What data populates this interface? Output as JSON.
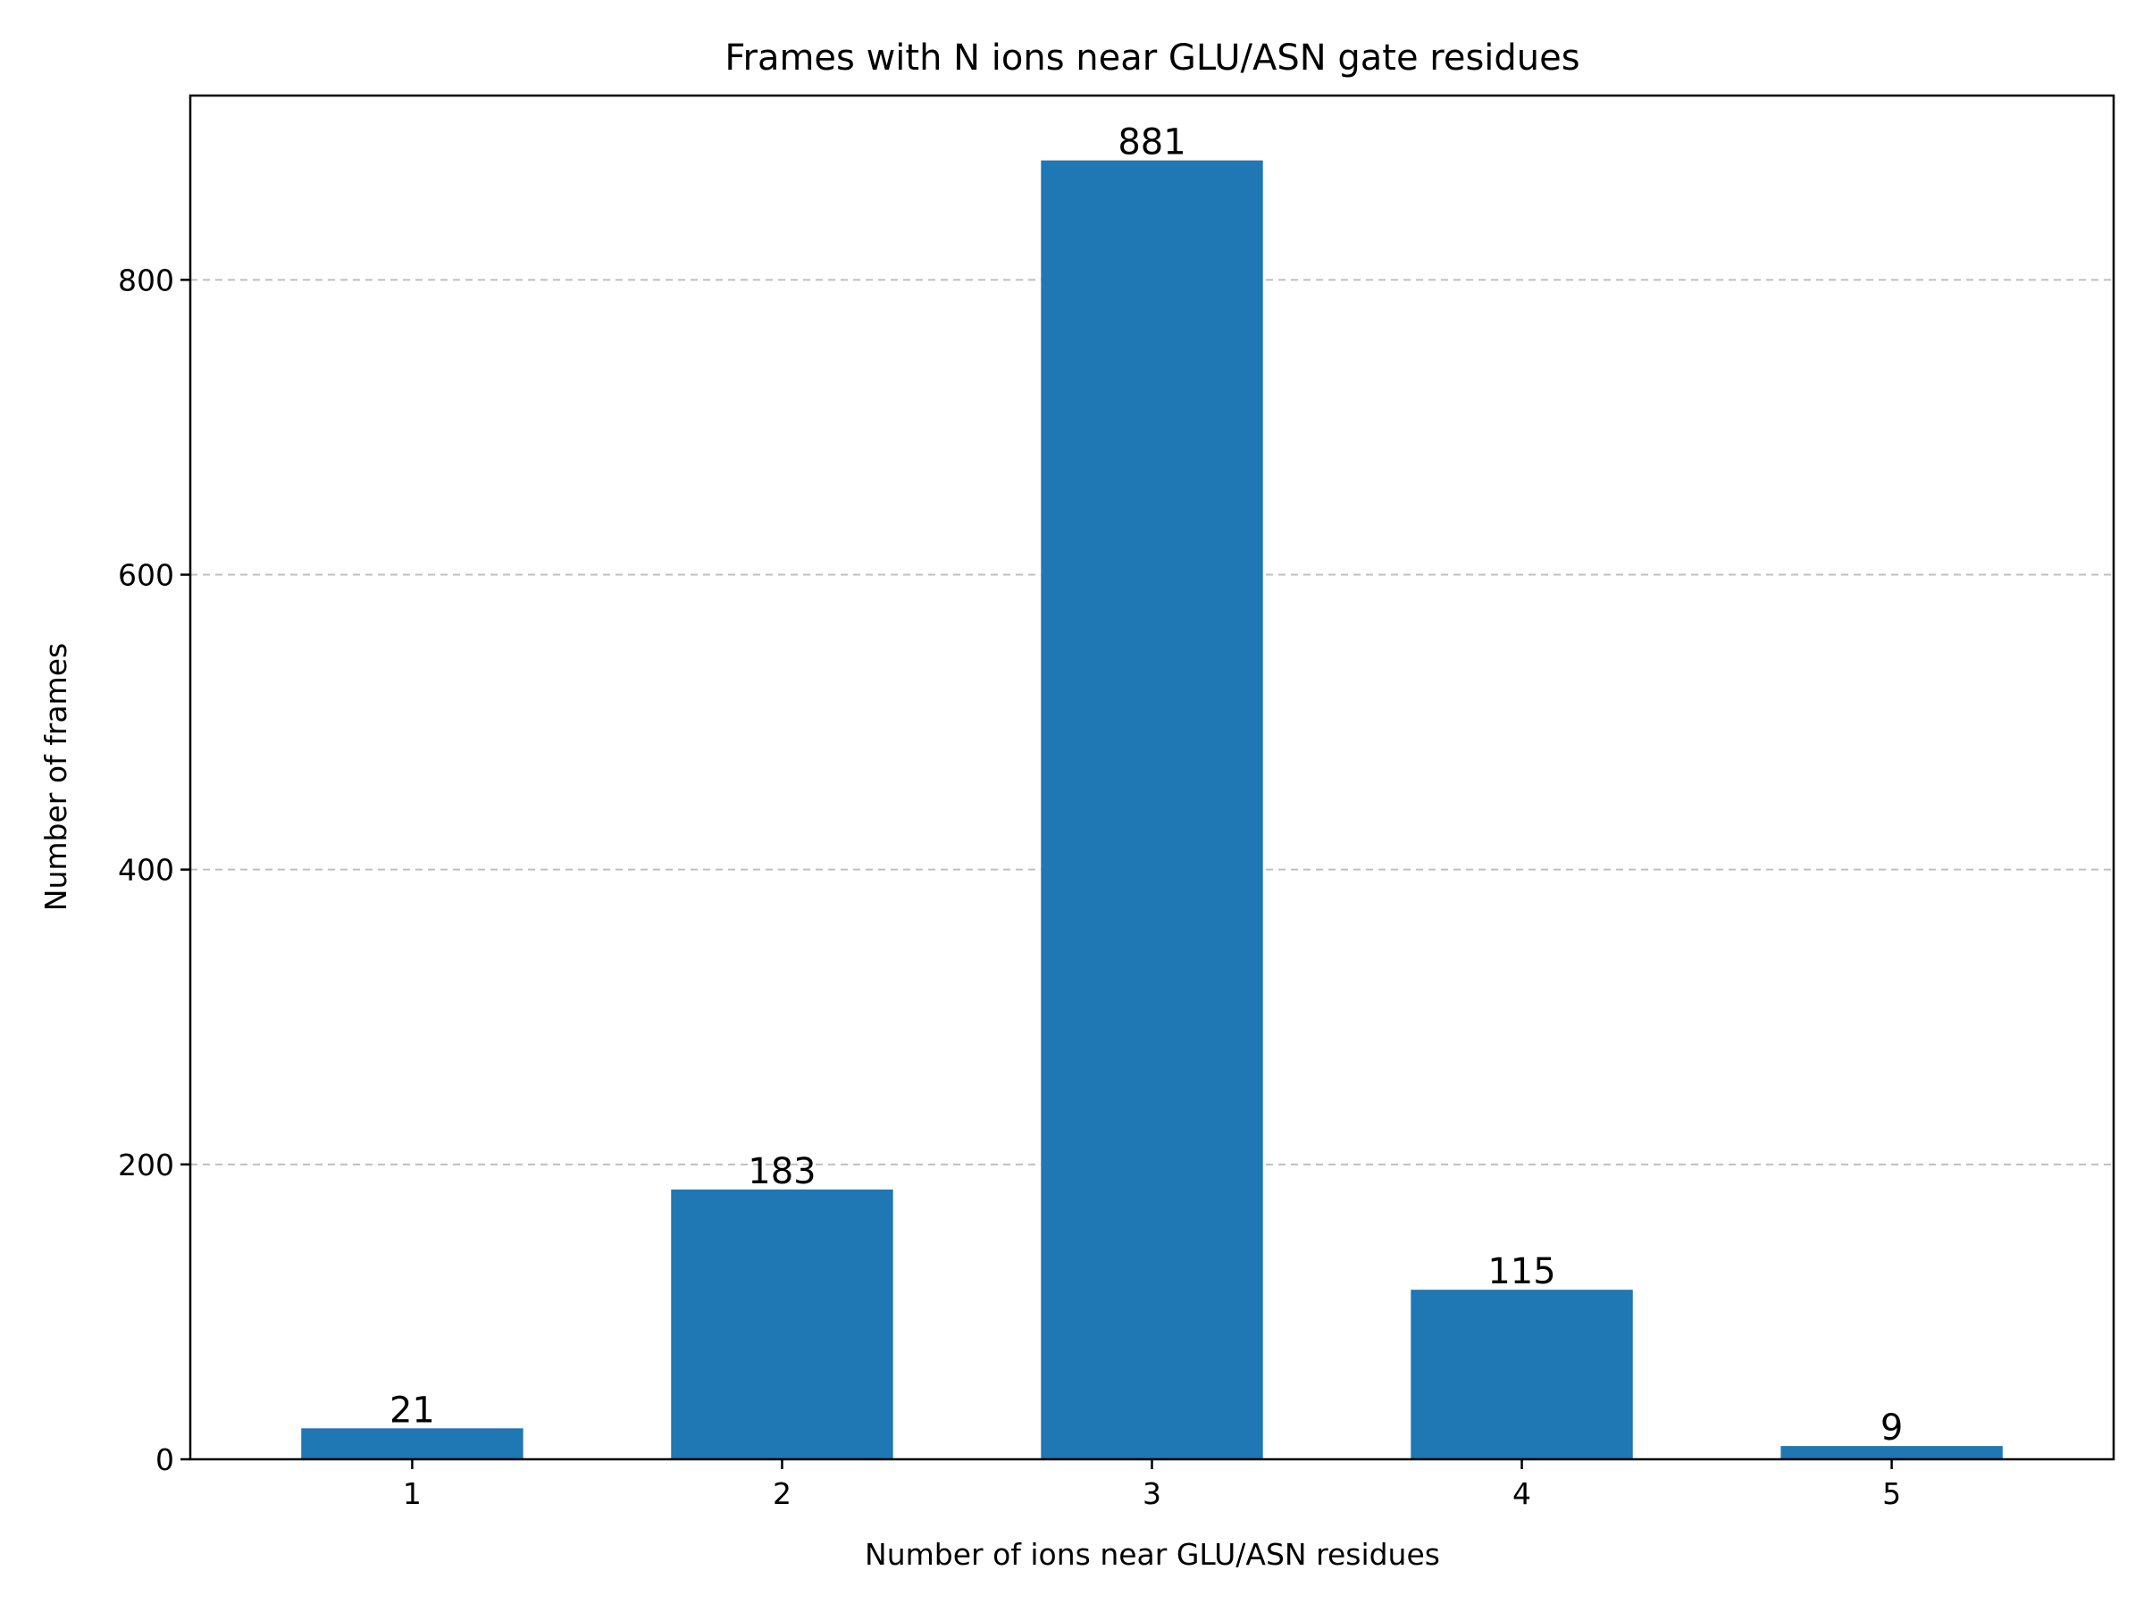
{
  "chart_data": {
    "type": "bar",
    "title": "Frames with N ions near GLU/ASN gate residues",
    "xlabel": "Number of ions near GLU/ASN residues",
    "ylabel": "Number of frames",
    "categories": [
      "1",
      "2",
      "3",
      "4",
      "5"
    ],
    "values": [
      21,
      183,
      881,
      115,
      9
    ],
    "data_labels": [
      "21",
      "183",
      "881",
      "115",
      "9"
    ],
    "yticks": [
      0,
      200,
      400,
      600,
      800
    ],
    "ytick_labels": [
      "0",
      "200",
      "400",
      "600",
      "800"
    ],
    "ylim": [
      0,
      925
    ],
    "grid": "y-axis dashed",
    "legend": "none",
    "bar_color": "#1f77b4"
  }
}
